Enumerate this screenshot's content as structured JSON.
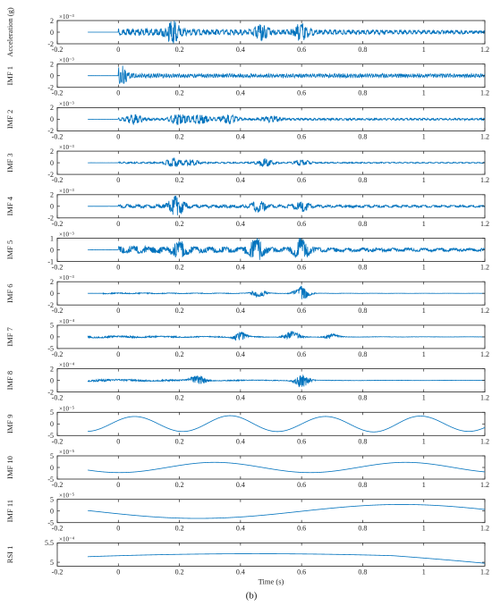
{
  "chart_data": {
    "type": "line",
    "line_color": "#0072BD",
    "axis_color": "#262626",
    "grid": false,
    "shared_x_axis": {
      "label": "Time (s)",
      "lim": [
        -0.2,
        1.2
      ],
      "ticks": [
        -0.2,
        0,
        0.2,
        0.4,
        0.6,
        0.8,
        1,
        1.2
      ],
      "tick_labels": [
        "-0.2",
        "0",
        "0.2",
        "0.4",
        "0.6",
        "0.8",
        "1",
        "1.2"
      ]
    },
    "caption": "(b)",
    "panels": [
      {
        "name": "acceleration",
        "ylabel": "Acceleration (g)",
        "exponent_label": "×10⁻³",
        "ylim": [
          -2,
          2
        ],
        "yticks": [
          "-2",
          "0",
          "2"
        ],
        "signal": {
          "kind": "burst",
          "amp": 0.65,
          "freq": 65,
          "t0": 0,
          "decay": 0.55,
          "peaks": [
            [
              0.18,
              1.6
            ],
            [
              0.47,
              1.1
            ],
            [
              0.6,
              1.2
            ]
          ]
        }
      },
      {
        "name": "imf-1",
        "ylabel": "IMF 1",
        "exponent_label": "×10⁻³",
        "ylim": [
          -2,
          2
        ],
        "yticks": [
          "-2",
          "0",
          "2"
        ],
        "signal": {
          "kind": "burst",
          "amp": 0.35,
          "freq": 140,
          "t0": 0,
          "decay": 0.05,
          "peaks": [
            [
              0.005,
              1.6
            ]
          ],
          "floor": 0.25
        }
      },
      {
        "name": "imf-2",
        "ylabel": "IMF 2",
        "exponent_label": "×10⁻³",
        "ylim": [
          -2,
          2
        ],
        "yticks": [
          "-2",
          "0",
          "2"
        ],
        "signal": {
          "kind": "burst",
          "amp": 0.2,
          "freq": 70,
          "t0": 0,
          "decay": 0.1,
          "peaks": [
            [
              0.05,
              0.75
            ],
            [
              0.2,
              0.9
            ],
            [
              0.27,
              0.75
            ],
            [
              0.36,
              0.7
            ],
            [
              0.5,
              0.5
            ]
          ],
          "width": 0.03
        }
      },
      {
        "name": "imf-3",
        "ylabel": "IMF 3",
        "exponent_label": "×10⁻³",
        "ylim": [
          -2,
          2
        ],
        "yticks": [
          "-2",
          "0",
          "2"
        ],
        "signal": {
          "kind": "burst",
          "amp": 0.15,
          "freq": 50,
          "t0": 0,
          "decay": 0.4,
          "peaks": [
            [
              0.18,
              0.7
            ],
            [
              0.24,
              0.5
            ],
            [
              0.48,
              0.7
            ],
            [
              0.6,
              0.5
            ]
          ]
        }
      },
      {
        "name": "imf-4",
        "ylabel": "IMF 4",
        "exponent_label": "×10⁻³",
        "ylim": [
          -2,
          2
        ],
        "yticks": [
          "-2",
          "0",
          "2"
        ],
        "signal": {
          "kind": "burst",
          "amp": 0.35,
          "freq": 32,
          "t0": 0,
          "decay": 0.5,
          "peaks": [
            [
              0.19,
              1.7
            ],
            [
              0.46,
              0.9
            ],
            [
              0.6,
              0.8
            ]
          ]
        }
      },
      {
        "name": "imf-5",
        "ylabel": "IMF 5",
        "exponent_label": "×10⁻³",
        "ylim": [
          -1,
          1
        ],
        "yticks": [
          "-1",
          "0",
          "1"
        ],
        "signal": {
          "kind": "burst",
          "amp": 0.35,
          "freq": 20,
          "t0": 0,
          "decay": 0.8,
          "peaks": [
            [
              0.2,
              0.6
            ],
            [
              0.45,
              0.9
            ],
            [
              0.6,
              1.0
            ]
          ]
        }
      },
      {
        "name": "imf-6",
        "ylabel": "IMF 6",
        "exponent_label": "×10⁻³",
        "ylim": [
          -2,
          2
        ],
        "yticks": [
          "-2",
          "0",
          "2"
        ],
        "signal": {
          "kind": "burst",
          "amp": 0.12,
          "freq": 12,
          "t0": -0.05,
          "decay": 2,
          "peaks": [
            [
              0.46,
              0.7
            ],
            [
              0.6,
              1.3
            ]
          ]
        }
      },
      {
        "name": "imf-7",
        "ylabel": "IMF 7",
        "exponent_label": "×10⁻⁴",
        "ylim": [
          -5,
          5
        ],
        "yticks": [
          "-5",
          "0",
          "5"
        ],
        "signal": {
          "kind": "burst",
          "amp": 0.6,
          "freq": 7,
          "t0": -0.1,
          "decay": 2,
          "peaks": [
            [
              0.4,
              2.2
            ],
            [
              0.57,
              2.6
            ],
            [
              0.7,
              1.2
            ]
          ]
        }
      },
      {
        "name": "imf-8",
        "ylabel": "IMF 8",
        "exponent_label": "×10⁻⁴",
        "ylim": [
          -2,
          2
        ],
        "yticks": [
          "-2",
          "0",
          "2"
        ],
        "signal": {
          "kind": "burst",
          "amp": 0.25,
          "freq": 4.5,
          "t0": -0.1,
          "decay": 2,
          "peaks": [
            [
              0.26,
              0.9
            ],
            [
              0.6,
              1.3
            ]
          ]
        }
      },
      {
        "name": "imf-9",
        "ylabel": "IMF 9",
        "exponent_label": "×10⁻⁵",
        "ylim": [
          -5,
          5
        ],
        "yticks": [
          "-5",
          "0",
          "5"
        ],
        "signal": {
          "kind": "sine",
          "amp": 3.2,
          "freq": 3.2,
          "phase": 0.5,
          "mod": [
            [
              0.37,
              1.0
            ],
            [
              0.9,
              0.9
            ]
          ]
        }
      },
      {
        "name": "imf-10",
        "ylabel": "IMF 10",
        "exponent_label": "×10⁻⁵",
        "ylim": [
          -5,
          5
        ],
        "yticks": [
          "-5",
          "0",
          "5"
        ],
        "signal": {
          "kind": "sine",
          "amp": 2.2,
          "freq": 1.6,
          "phase": -1.6
        }
      },
      {
        "name": "imf-11",
        "ylabel": "IMF 11",
        "exponent_label": "×10⁻⁵",
        "ylim": [
          -5,
          5
        ],
        "yticks": [
          "-5",
          "0",
          "5"
        ],
        "signal": {
          "kind": "sine",
          "amp": 3.0,
          "freq": 0.75,
          "phase": -2.8,
          "offset": -0.2
        }
      },
      {
        "name": "rsi-1",
        "ylabel": "RSI 1",
        "exponent_label": "×10⁻⁴",
        "ylim": [
          4.9,
          5.5
        ],
        "yticks": [
          "5",
          "5.5"
        ],
        "signal": {
          "kind": "arch",
          "center": 0.45,
          "peak": 5.22,
          "base": 5.12,
          "end": 5.0
        }
      }
    ]
  }
}
